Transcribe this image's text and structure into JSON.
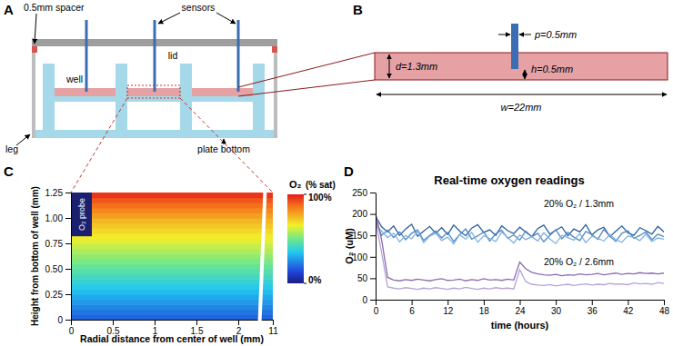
{
  "diagram_a": {
    "panel": "A",
    "labels": [
      "0.5mm spacer",
      "sensors",
      "lid",
      "well",
      "leg",
      "plate bottom"
    ]
  },
  "diagram_b": {
    "panel": "B",
    "dimensions": [
      "p=0.5mm",
      "d=1.3mm",
      "h=0.5mm",
      "w=22mm"
    ]
  },
  "chart_data": [
    {
      "panel": "C",
      "type": "heatmap",
      "xlabel": "Radial distance from center of well (mm)",
      "ylabel": "Height from bottom of well (mm)",
      "xlim": [
        0,
        11
      ],
      "x_break": [
        2.25,
        10.8
      ],
      "xticks": [
        0,
        0.5,
        1,
        1.5,
        2,
        11
      ],
      "ylim": [
        0,
        1.25
      ],
      "yticks": [
        0,
        0.25,
        {
          "value": 0.5,
          "label": "0.50"
        },
        0.75,
        {
          "value": 1,
          "label": "1.00"
        },
        1.25
      ],
      "y_edges": [
        0,
        0.05,
        0.1,
        0.15,
        0.2,
        0.25,
        0.3,
        0.35,
        0.4,
        0.45,
        0.5,
        0.55,
        0.6,
        0.65,
        0.7,
        0.75,
        0.8,
        0.85,
        0.9,
        0.95,
        1,
        1.05,
        1.1,
        1.15,
        1.2,
        1.25
      ],
      "cells": [
        18,
        21,
        24,
        27,
        30,
        33,
        36,
        39,
        42,
        45,
        48,
        51,
        54,
        57,
        60,
        63,
        66,
        69,
        72,
        75,
        79,
        83,
        87,
        91,
        96
      ],
      "colorbar": {
        "title": [
          "O₂",
          "(% sat)"
        ],
        "range": [
          0,
          100
        ],
        "ticks": [
          {
            "value": 0,
            "label": "0%"
          },
          {
            "value": 100,
            "label": "100%"
          }
        ]
      },
      "probe": {
        "label": "O₂ probe",
        "x": [
          0,
          0.25
        ],
        "y": [
          0.82,
          1.25
        ]
      }
    },
    {
      "panel": "D",
      "type": "line",
      "title": "Real-time oxygen readings",
      "xlabel": "time (hours)",
      "ylabel": "O₂ (uM)",
      "x": [
        0,
        1,
        2,
        3,
        4,
        5,
        6,
        7,
        8,
        9,
        10,
        11,
        12,
        13,
        14,
        15,
        16,
        17,
        18,
        19,
        20,
        21,
        22,
        23,
        24,
        25,
        26,
        27,
        28,
        29,
        30,
        31,
        32,
        33,
        34,
        35,
        36,
        37,
        38,
        39,
        40,
        41,
        42,
        43,
        44,
        45,
        46,
        47,
        48
      ],
      "xlim": [
        0,
        48
      ],
      "xticks": [
        0,
        6,
        12,
        18,
        24,
        30,
        36,
        42,
        48
      ],
      "ylim": [
        0,
        250
      ],
      "yticks": [
        0,
        50,
        100,
        150,
        200,
        250
      ],
      "series": [
        {
          "color": "#2b5f9e",
          "values": [
            195,
            170,
            158,
            172,
            150,
            165,
            176,
            148,
            160,
            171,
            155,
            168,
            152,
            174,
            160,
            149,
            167,
            175,
            157,
            163,
            150,
            172,
            161,
            154,
            169,
            158,
            147,
            166,
            174,
            153,
            162,
            170,
            149,
            165,
            158,
            175,
            151,
            163,
            169,
            147,
            160,
            172,
            156,
            150,
            168,
            161,
            153,
            171,
            158
          ]
        },
        {
          "color": "#4f87c4",
          "values": [
            185,
            150,
            162,
            145,
            158,
            140,
            155,
            163,
            138,
            150,
            160,
            144,
            157,
            136,
            152,
            165,
            141,
            149,
            158,
            137,
            154,
            162,
            143,
            151,
            139,
            160,
            147,
            155,
            135,
            150,
            163,
            142,
            157,
            146,
            138,
            159,
            152,
            141,
            164,
            148,
            136,
            155,
            161,
            143,
            150,
            158,
            140,
            153,
            147
          ]
        },
        {
          "color": "#7fb2e2",
          "values": [
            175,
            160,
            145,
            155,
            135,
            150,
            142,
            160,
            133,
            148,
            155,
            138,
            146,
            130,
            152,
            141,
            157,
            134,
            149,
            143,
            136,
            158,
            145,
            132,
            151,
            140,
            147,
            137,
            156,
            142,
            131,
            150,
            145,
            139,
            154,
            133,
            148,
            143,
            137,
            152,
            140,
            134,
            149,
            145,
            138,
            153,
            136,
            144,
            141
          ]
        },
        {
          "color": "#8b6bb1",
          "values": [
            200,
            140,
            52,
            46,
            44,
            47,
            45,
            48,
            46,
            44,
            47,
            49,
            45,
            46,
            48,
            44,
            47,
            45,
            49,
            46,
            47,
            45,
            48,
            46,
            88,
            72,
            64,
            60,
            58,
            57,
            59,
            56,
            58,
            57,
            60,
            58,
            59,
            61,
            58,
            60,
            62,
            59,
            61,
            60,
            63,
            61,
            62,
            60,
            62
          ]
        },
        {
          "color": "#b6a3d6",
          "values": [
            185,
            110,
            30,
            27,
            25,
            28,
            26,
            24,
            27,
            25,
            28,
            26,
            24,
            27,
            25,
            29,
            26,
            24,
            27,
            25,
            28,
            26,
            27,
            25,
            70,
            42,
            36,
            34,
            33,
            35,
            32,
            34,
            36,
            33,
            35,
            37,
            34,
            36,
            35,
            38,
            36,
            37,
            35,
            39,
            37,
            38,
            36,
            40,
            38
          ]
        }
      ],
      "annotations": [
        "20% O₂ / 1.3mm",
        "20% O₂ / 2.6mm"
      ]
    }
  ]
}
